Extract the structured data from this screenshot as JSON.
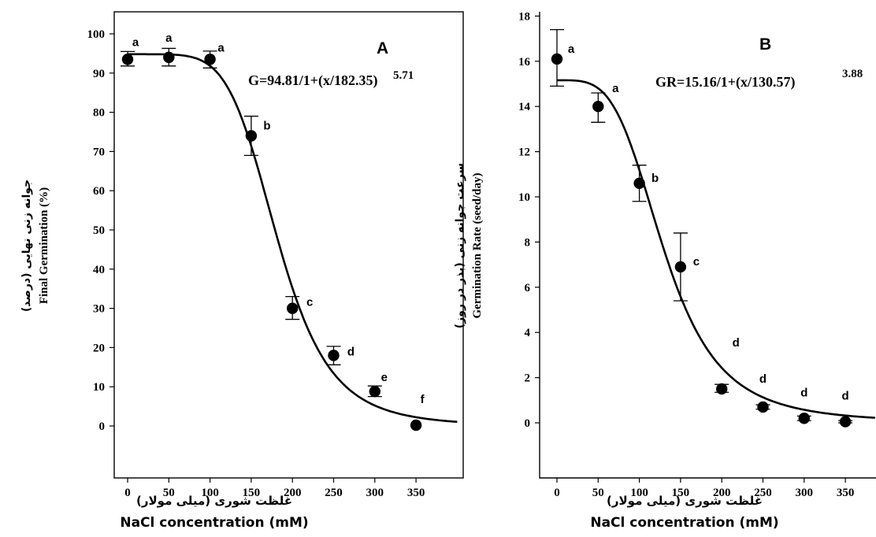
{
  "chart_data": [
    {
      "type": "scatter",
      "panel_letter": "A",
      "equation": "G=94.81/1+(x/182.35)",
      "equation_exponent": "5.71",
      "fit": {
        "model": "log-logistic",
        "max": 94.81,
        "x50": 182.35,
        "slope": 5.71
      },
      "x": [
        0,
        50,
        100,
        150,
        200,
        250,
        300,
        350
      ],
      "values": [
        93.5,
        94.0,
        93.5,
        74.0,
        30.0,
        18.0,
        8.8,
        0.2
      ],
      "error_upper": [
        95.5,
        96.3,
        95.6,
        79.0,
        33.0,
        20.3,
        10.2,
        0.2
      ],
      "error_lower": [
        91.8,
        91.8,
        91.3,
        69.0,
        27.2,
        15.6,
        7.5,
        0.2
      ],
      "significance": [
        "a",
        "a",
        "a",
        "b",
        "c",
        "d",
        "e",
        "f"
      ],
      "xlim": [
        -30,
        395
      ],
      "ylim": [
        -10,
        105
      ],
      "x_ticks": [
        "0",
        "50",
        "100",
        "150",
        "200",
        "250",
        "300",
        "350"
      ],
      "y_ticks": [
        "0",
        "10",
        "20",
        "30",
        "40",
        "50",
        "60",
        "70",
        "80",
        "90",
        "100"
      ],
      "ylabel_fa": "جوانه زنی نهایی (درصد)",
      "ylabel_en": "Final Germination (%)",
      "xlabel_fa": "غلظت شوری (میلی مولار)",
      "xlabel_en": "NaCl concentration (mM)"
    },
    {
      "type": "scatter",
      "panel_letter": "B",
      "equation": "GR=15.16/1+(x/130.57)",
      "equation_exponent": "3.88",
      "fit": {
        "model": "log-logistic",
        "max": 15.16,
        "x50": 130.57,
        "slope": 3.88
      },
      "x": [
        0,
        50,
        100,
        150,
        200,
        250,
        300,
        350
      ],
      "values": [
        16.1,
        14.0,
        10.6,
        6.9,
        1.5,
        0.7,
        0.2,
        0.05
      ],
      "error_upper": [
        17.4,
        14.6,
        11.4,
        8.4,
        1.7,
        0.8,
        0.3,
        0.1
      ],
      "error_lower": [
        14.9,
        13.3,
        9.8,
        5.4,
        1.35,
        0.6,
        0.1,
        0.0
      ],
      "significance": [
        "a",
        "a",
        "b",
        "c",
        "d",
        "d",
        "d",
        "d"
      ],
      "xlim": [
        -30,
        395
      ],
      "ylim": [
        -1,
        18
      ],
      "x_ticks": [
        "0",
        "50",
        "100",
        "150",
        "200",
        "250",
        "300",
        "350"
      ],
      "y_ticks": [
        "0",
        "2",
        "4",
        "6",
        "8",
        "10",
        "12",
        "14",
        "16",
        "18"
      ],
      "ylabel_fa": "سرعت جوانه زنی (بذر در روز)",
      "ylabel_en": "Germination Rate (seed/day)",
      "xlabel_fa": "غلظت شوری (میلی مولار)",
      "xlabel_en": "NaCl concentration (mM)"
    }
  ]
}
